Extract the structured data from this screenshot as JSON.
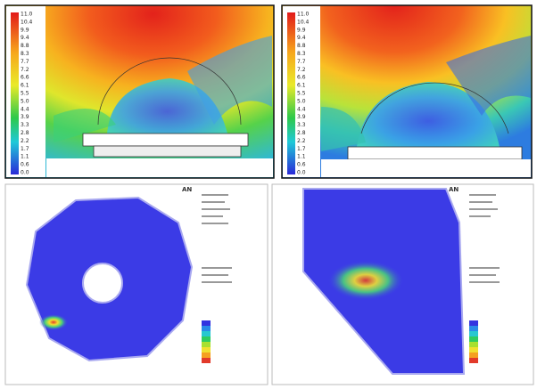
{
  "panels": [
    {
      "colorbar_labels": [
        "11.0",
        "10.4",
        "9.9",
        "9.4",
        "8.8",
        "8.3",
        "7.7",
        "7.2",
        "6.6",
        "6.1",
        "5.5",
        "5.0",
        "4.4",
        "3.9",
        "3.3",
        "2.8",
        "2.2",
        "1.7",
        "1.1",
        "0.6",
        "0.0"
      ]
    },
    {
      "colorbar_labels": [
        "11.0",
        "10.4",
        "9.9",
        "9.4",
        "8.8",
        "8.3",
        "7.7",
        "7.2",
        "6.6",
        "6.1",
        "5.5",
        "5.0",
        "4.4",
        "3.9",
        "3.3",
        "2.8",
        "2.2",
        "1.7",
        "1.1",
        "0.6",
        "0.0"
      ]
    }
  ],
  "logos": [
    "AN",
    "AN"
  ]
}
